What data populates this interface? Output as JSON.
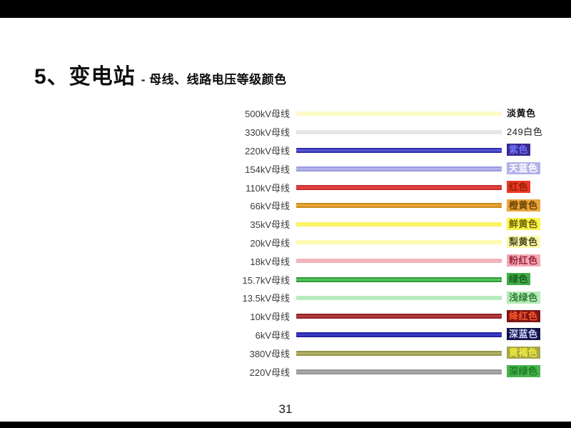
{
  "slide": {
    "title_main": "5、变电站",
    "title_sub": "- 母线、线路电压等级颜色",
    "page_number": "31",
    "letterbox_color": "#000000",
    "background_color": "#ffffff"
  },
  "rows": [
    {
      "label": "500kV母线",
      "bar": "#fdfac6",
      "edge": "",
      "badge": "淡黄色",
      "badge_bg": "",
      "badge_fg": "#111111",
      "bold": true
    },
    {
      "label": "330kV母线",
      "bar": "#e6e6e6",
      "edge": "",
      "badge": "249白色",
      "badge_bg": "",
      "badge_fg": "#222222",
      "bold": false
    },
    {
      "label": "220kV母线",
      "bar": "#5656d6",
      "edge": "#2e2ea8",
      "badge": "紫色",
      "badge_bg": "#3b2a8f",
      "badge_fg": "#7373ff",
      "bold": true
    },
    {
      "label": "154kV母线",
      "bar": "#b4b4ec",
      "edge": "#9a9ade",
      "badge": "天蓝色",
      "badge_bg": "#b2b2e8",
      "badge_fg": "#ffffff",
      "bold": true
    },
    {
      "label": "110kV母线",
      "bar": "#e84040",
      "edge": "#c62e2e",
      "badge": "红色",
      "badge_bg": "#ee3528",
      "badge_fg": "#8a2800",
      "bold": true
    },
    {
      "label": "66kV母线",
      "bar": "#e8a636",
      "edge": "#cc8a20",
      "badge": "橙黄色",
      "badge_bg": "#eaa53c",
      "badge_fg": "#6b4300",
      "bold": true
    },
    {
      "label": "35kV母线",
      "bar": "#faf466",
      "edge": "",
      "badge": "鲜黄色",
      "badge_bg": "#f8f44e",
      "badge_fg": "#6e6400",
      "bold": true
    },
    {
      "label": "20kV母线",
      "bar": "#fdfbb2",
      "edge": "",
      "badge": "梨黄色",
      "badge_bg": "#fbf9ad",
      "badge_fg": "#4a4a20",
      "bold": true
    },
    {
      "label": "18kV母线",
      "bar": "#f2b4ba",
      "edge": "",
      "badge": "粉红色",
      "badge_bg": "#f4a9b4",
      "badge_fg": "#992740",
      "bold": true
    },
    {
      "label": "15.7kV母线",
      "bar": "#58c45e",
      "edge": "#2f9a38",
      "badge": "绿色",
      "badge_bg": "#3fae46",
      "badge_fg": "#1d5c20",
      "bold": true
    },
    {
      "label": "13.5kV母线",
      "bar": "#b8ecc0",
      "edge": "",
      "badge": "浅绿色",
      "badge_bg": "#b4ecb8",
      "badge_fg": "#2f7a35",
      "bold": true
    },
    {
      "label": "10kV母线",
      "bar": "#b43c3c",
      "edge": "#8f2424",
      "badge": "绛红色",
      "badge_bg": "#7e1616",
      "badge_fg": "#ff5a2a",
      "bold": true
    },
    {
      "label": "6kV母线",
      "bar": "#3c3cc8",
      "edge": "#2424a0",
      "badge": "深蓝色",
      "badge_bg": "#15154a",
      "badge_fg": "#cfd4ff",
      "bold": true
    },
    {
      "label": "380V母线",
      "bar": "#b2b266",
      "edge": "#94944a",
      "badge": "黄褐色",
      "badge_bg": "#a6a648",
      "badge_fg": "#f4ee3a",
      "bold": true
    },
    {
      "label": "220V母线",
      "bar": "#a8a8a8",
      "edge": "#949494",
      "badge": "深绿色",
      "badge_bg": "#46b54c",
      "badge_fg": "#1e7d26",
      "bold": true
    }
  ]
}
